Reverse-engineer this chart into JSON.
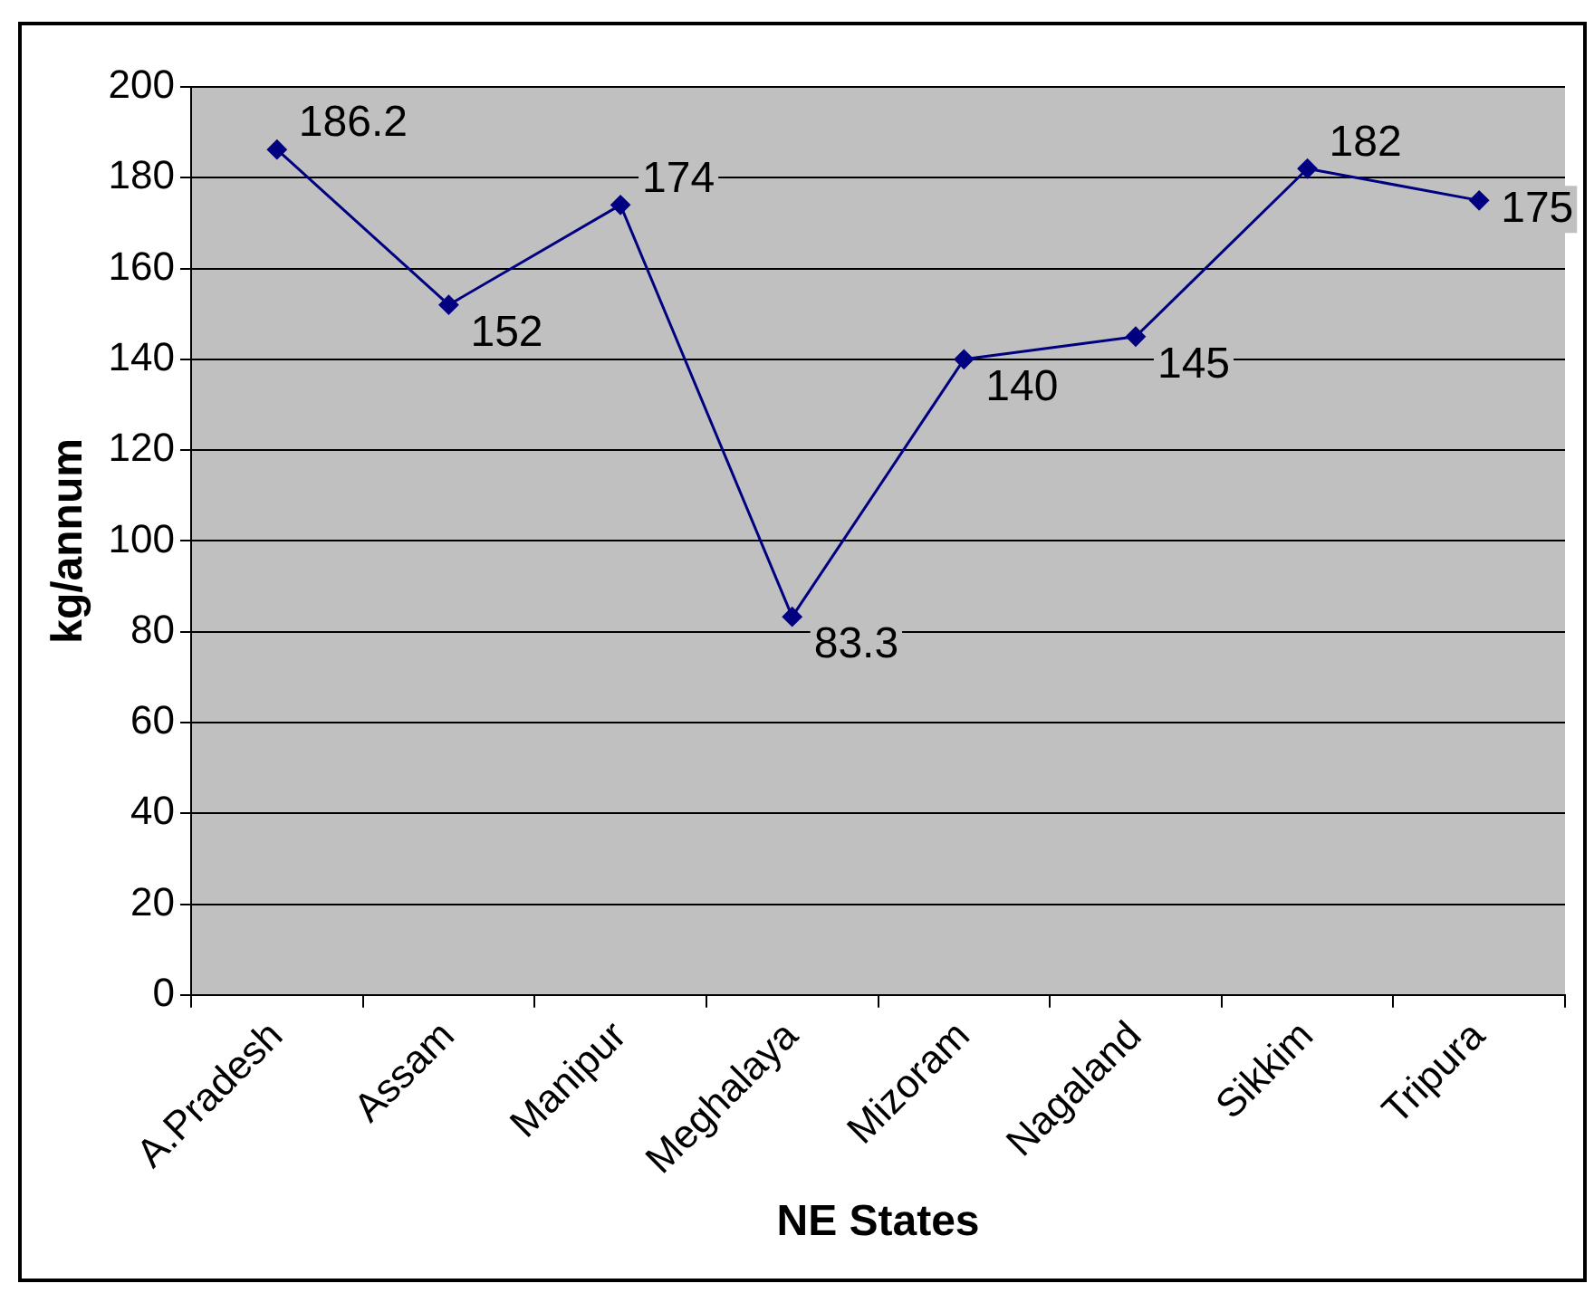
{
  "chart_data": {
    "type": "line",
    "xlabel": "NE States",
    "ylabel": "kg/annum",
    "categories": [
      "A.Pradesh",
      "Assam",
      "Manipur",
      "Meghalaya",
      "Mizoram",
      "Nagaland",
      "Sikkim",
      "Tripura"
    ],
    "values": [
      186.2,
      152,
      174,
      83.3,
      140,
      145,
      182,
      175
    ],
    "color": "#000080",
    "marker": "diamond",
    "line_style": "solid",
    "data_labels": true,
    "ylim": [
      0,
      200
    ],
    "yticks": [
      0,
      20,
      40,
      60,
      80,
      100,
      120,
      140,
      160,
      180,
      200
    ],
    "grid": "y",
    "legend": false
  }
}
